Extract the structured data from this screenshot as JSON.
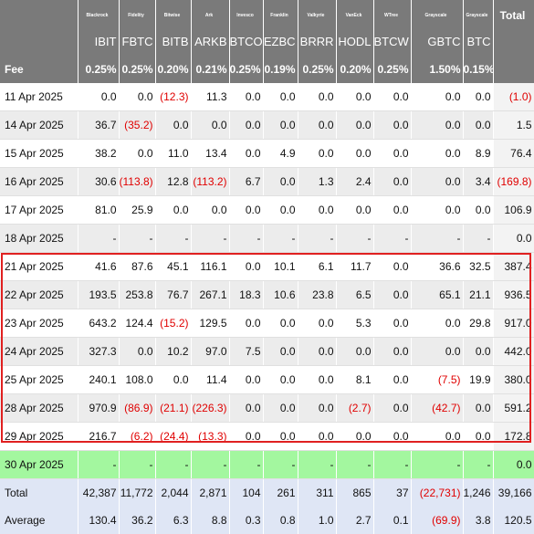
{
  "header": {
    "issuers": [
      "Blackrock",
      "Fidelity",
      "Bitwise",
      "Ark",
      "Invesco",
      "Franklin",
      "Valkyrie",
      "VanEck",
      "WTree",
      "Grayscale",
      "Grayscale"
    ],
    "total_label": "Total",
    "tickers": [
      "IBIT",
      "FBTC",
      "BITB",
      "ARKB",
      "BTCO",
      "EZBC",
      "BRRR",
      "HODL",
      "BTCW",
      "GBTC",
      "BTC"
    ],
    "fee_label": "Fee",
    "fees": [
      "0.25%",
      "0.25%",
      "0.20%",
      "0.21%",
      "0.25%",
      "0.19%",
      "0.25%",
      "0.20%",
      "0.25%",
      "1.50%",
      "0.15%"
    ]
  },
  "rows": [
    {
      "date": "11 Apr 2025",
      "style": "plain",
      "cells": [
        "0.0",
        "0.0",
        "(12.3)",
        "11.3",
        "0.0",
        "0.0",
        "0.0",
        "0.0",
        "0.0",
        "0.0",
        "0.0"
      ],
      "total": "(1.0)"
    },
    {
      "date": "14 Apr 2025",
      "style": "alt",
      "cells": [
        "36.7",
        "(35.2)",
        "0.0",
        "0.0",
        "0.0",
        "0.0",
        "0.0",
        "0.0",
        "0.0",
        "0.0",
        "0.0"
      ],
      "total": "1.5"
    },
    {
      "date": "15 Apr 2025",
      "style": "plain",
      "cells": [
        "38.2",
        "0.0",
        "11.0",
        "13.4",
        "0.0",
        "4.9",
        "0.0",
        "0.0",
        "0.0",
        "0.0",
        "8.9"
      ],
      "total": "76.4"
    },
    {
      "date": "16 Apr 2025",
      "style": "alt",
      "cells": [
        "30.6",
        "(113.8)",
        "12.8",
        "(113.2)",
        "6.7",
        "0.0",
        "1.3",
        "2.4",
        "0.0",
        "0.0",
        "3.4"
      ],
      "total": "(169.8)"
    },
    {
      "date": "17 Apr 2025",
      "style": "plain",
      "cells": [
        "81.0",
        "25.9",
        "0.0",
        "0.0",
        "0.0",
        "0.0",
        "0.0",
        "0.0",
        "0.0",
        "0.0",
        "0.0"
      ],
      "total": "106.9"
    },
    {
      "date": "18 Apr 2025",
      "style": "alt",
      "cells": [
        "-",
        "-",
        "-",
        "-",
        "-",
        "-",
        "-",
        "-",
        "-",
        "-",
        "-"
      ],
      "total": "0.0"
    },
    {
      "date": "21 Apr 2025",
      "style": "plain",
      "cells": [
        "41.6",
        "87.6",
        "45.1",
        "116.1",
        "0.0",
        "10.1",
        "6.1",
        "11.7",
        "0.0",
        "36.6",
        "32.5"
      ],
      "total": "387.4"
    },
    {
      "date": "22 Apr 2025",
      "style": "alt",
      "cells": [
        "193.5",
        "253.8",
        "76.7",
        "267.1",
        "18.3",
        "10.6",
        "23.8",
        "6.5",
        "0.0",
        "65.1",
        "21.1"
      ],
      "total": "936.5"
    },
    {
      "date": "23 Apr 2025",
      "style": "plain",
      "cells": [
        "643.2",
        "124.4",
        "(15.2)",
        "129.5",
        "0.0",
        "0.0",
        "0.0",
        "5.3",
        "0.0",
        "0.0",
        "29.8"
      ],
      "total": "917.0"
    },
    {
      "date": "24 Apr 2025",
      "style": "alt",
      "cells": [
        "327.3",
        "0.0",
        "10.2",
        "97.0",
        "7.5",
        "0.0",
        "0.0",
        "0.0",
        "0.0",
        "0.0",
        "0.0"
      ],
      "total": "442.0"
    },
    {
      "date": "25 Apr 2025",
      "style": "plain",
      "cells": [
        "240.1",
        "108.0",
        "0.0",
        "11.4",
        "0.0",
        "0.0",
        "0.0",
        "8.1",
        "0.0",
        "(7.5)",
        "19.9"
      ],
      "total": "380.0"
    },
    {
      "date": "28 Apr 2025",
      "style": "alt",
      "cells": [
        "970.9",
        "(86.9)",
        "(21.1)",
        "(226.3)",
        "0.0",
        "0.0",
        "0.0",
        "(2.7)",
        "0.0",
        "(42.7)",
        "0.0"
      ],
      "total": "591.2"
    },
    {
      "date": "29 Apr 2025",
      "style": "plain",
      "cells": [
        "216.7",
        "(6.2)",
        "(24.4)",
        "(13.3)",
        "0.0",
        "0.0",
        "0.0",
        "0.0",
        "0.0",
        "0.0",
        "0.0"
      ],
      "total": "172.8"
    },
    {
      "date": "30 Apr 2025",
      "style": "green",
      "cells": [
        "-",
        "-",
        "-",
        "-",
        "-",
        "-",
        "-",
        "-",
        "-",
        "-",
        "-"
      ],
      "total": "0.0"
    }
  ],
  "summary": [
    {
      "label": "Total",
      "cells": [
        "42,387",
        "11,772",
        "2,044",
        "2,871",
        "104",
        "261",
        "311",
        "865",
        "37",
        "(22,731)",
        "1,246"
      ],
      "total": "39,166"
    },
    {
      "label": "Average",
      "cells": [
        "130.4",
        "36.2",
        "6.3",
        "8.8",
        "0.3",
        "0.8",
        "1.0",
        "2.7",
        "0.1",
        "(69.9)",
        "3.8"
      ],
      "total": "120.5"
    }
  ],
  "colors": {
    "header_bg": "#7a7a7a",
    "highlight_row_bg": "#a3f79f",
    "summary_bg": "#dfe6f5",
    "negative_text": "#e00000",
    "highlight_border": "#e02020"
  }
}
